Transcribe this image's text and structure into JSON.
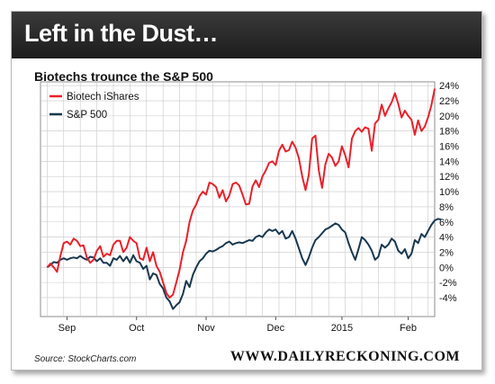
{
  "header": {
    "title": "Left in the Dust…",
    "subtitle": "Biotechs trounce the S&P 500"
  },
  "footer": {
    "source": "Source: StockCharts.com",
    "brand": "WWW.DAILYRECKONING.COM"
  },
  "colors": {
    "biotech": "#e8212b",
    "sp500": "#18384f",
    "grid": "#c8c8c8",
    "banner": "#262626"
  },
  "chart_data": {
    "type": "line",
    "title": "Biotechs trounce the S&P 500",
    "xlabel": "",
    "ylabel": "",
    "x_ticks": [
      "Sep",
      "Oct",
      "Nov",
      "Dec",
      "2015",
      "Feb"
    ],
    "x_tick_positions": [
      6,
      27,
      48,
      69,
      89,
      109
    ],
    "xlim": [
      -2,
      117
    ],
    "y_ticks": [
      "-4%",
      "-2%",
      "0%",
      "2%",
      "4%",
      "6%",
      "8%",
      "10%",
      "12%",
      "14%",
      "16%",
      "18%",
      "20%",
      "22%",
      "24%"
    ],
    "ylim": [
      -6.5,
      24.5
    ],
    "grid": true,
    "legend_position": "top-left",
    "series": [
      {
        "name": "Biotech iShares",
        "color": "#e8212b",
        "points": [
          [
            0,
            0
          ],
          [
            1,
            0.5
          ],
          [
            2,
            0
          ],
          [
            3,
            -0.6
          ],
          [
            4,
            1.5
          ],
          [
            5,
            3.2
          ],
          [
            6,
            3.4
          ],
          [
            7,
            3.0
          ],
          [
            8,
            3.8
          ],
          [
            9,
            3.5
          ],
          [
            10,
            2.8
          ],
          [
            11,
            2.9
          ],
          [
            12,
            1.3
          ],
          [
            13,
            0.6
          ],
          [
            14,
            1.0
          ],
          [
            15,
            2.2
          ],
          [
            16,
            2.8
          ],
          [
            17,
            1.4
          ],
          [
            18,
            1.8
          ],
          [
            19,
            1.6
          ],
          [
            20,
            3.0
          ],
          [
            21,
            3.5
          ],
          [
            22,
            3.5
          ],
          [
            23,
            2.0
          ],
          [
            24,
            2.6
          ],
          [
            25,
            4.0
          ],
          [
            26,
            3.5
          ],
          [
            27,
            3.2
          ],
          [
            28,
            1.2
          ],
          [
            29,
            1.0
          ],
          [
            30,
            2.6
          ],
          [
            31,
            0.8
          ],
          [
            32,
            2.0
          ],
          [
            33,
            0.2
          ],
          [
            34,
            -0.6
          ],
          [
            35,
            -2.0
          ],
          [
            36,
            -3.4
          ],
          [
            37,
            -4.0
          ],
          [
            38,
            -3.6
          ],
          [
            39,
            -2.0
          ],
          [
            40,
            -0.3
          ],
          [
            41,
            2.0
          ],
          [
            42,
            3.5
          ],
          [
            43,
            6.0
          ],
          [
            44,
            7.5
          ],
          [
            45,
            8.3
          ],
          [
            46,
            9.4
          ],
          [
            47,
            10.0
          ],
          [
            48,
            9.6
          ],
          [
            49,
            11.2
          ],
          [
            50,
            11.0
          ],
          [
            51,
            10.6
          ],
          [
            52,
            9.2
          ],
          [
            53,
            10.2
          ],
          [
            54,
            8.7
          ],
          [
            55,
            9.5
          ],
          [
            56,
            11.0
          ],
          [
            57,
            11.2
          ],
          [
            58,
            10.8
          ],
          [
            59,
            9.6
          ],
          [
            60,
            8.3
          ],
          [
            61,
            8.4
          ],
          [
            62,
            10.7
          ],
          [
            63,
            11.5
          ],
          [
            64,
            10.6
          ],
          [
            65,
            12.0
          ],
          [
            66,
            12.8
          ],
          [
            67,
            13.8
          ],
          [
            68,
            14.0
          ],
          [
            69,
            13.5
          ],
          [
            70,
            15.4
          ],
          [
            71,
            16.2
          ],
          [
            72,
            15.3
          ],
          [
            73,
            15.5
          ],
          [
            74,
            16.6
          ],
          [
            75,
            15.8
          ],
          [
            76,
            14.4
          ],
          [
            77,
            12.0
          ],
          [
            78,
            10.2
          ],
          [
            79,
            12.2
          ],
          [
            80,
            17.0
          ],
          [
            81,
            17.4
          ],
          [
            82,
            12.8
          ],
          [
            83,
            10.5
          ],
          [
            84,
            13.6
          ],
          [
            85,
            15.0
          ],
          [
            86,
            14.5
          ],
          [
            87,
            13.4
          ],
          [
            88,
            14.0
          ],
          [
            89,
            16.0
          ],
          [
            90,
            14.8
          ],
          [
            91,
            13.2
          ],
          [
            92,
            17.0
          ],
          [
            93,
            18.0
          ],
          [
            94,
            18.4
          ],
          [
            95,
            17.9
          ],
          [
            96,
            18.5
          ],
          [
            97,
            18.3
          ],
          [
            98,
            15.4
          ],
          [
            99,
            19.0
          ],
          [
            100,
            19.5
          ],
          [
            101,
            21.5
          ],
          [
            102,
            20.0
          ],
          [
            103,
            21.0
          ],
          [
            104,
            21.8
          ],
          [
            105,
            23.0
          ],
          [
            106,
            21.6
          ],
          [
            107,
            19.8
          ],
          [
            108,
            20.7
          ],
          [
            109,
            20.0
          ],
          [
            110,
            19.5
          ],
          [
            111,
            17.5
          ],
          [
            112,
            19.4
          ],
          [
            113,
            18.0
          ],
          [
            114,
            18.6
          ],
          [
            115,
            19.8
          ],
          [
            116,
            21.4
          ],
          [
            117,
            23.6
          ]
        ]
      },
      {
        "name": "S&P 500",
        "color": "#18384f",
        "points": [
          [
            0,
            0
          ],
          [
            1,
            0.3
          ],
          [
            2,
            0.7
          ],
          [
            3,
            0.6
          ],
          [
            4,
            1.0
          ],
          [
            5,
            1.2
          ],
          [
            6,
            1.0
          ],
          [
            7,
            1.2
          ],
          [
            8,
            1.3
          ],
          [
            9,
            1.2
          ],
          [
            10,
            1.5
          ],
          [
            11,
            1.2
          ],
          [
            12,
            1.0
          ],
          [
            13,
            1.4
          ],
          [
            14,
            1.3
          ],
          [
            15,
            0.8
          ],
          [
            16,
            1.2
          ],
          [
            17,
            0.6
          ],
          [
            18,
            0.6
          ],
          [
            19,
            0.2
          ],
          [
            20,
            1.2
          ],
          [
            21,
            1.0
          ],
          [
            22,
            1.5
          ],
          [
            23,
            0.8
          ],
          [
            24,
            1.4
          ],
          [
            25,
            0.6
          ],
          [
            26,
            1.6
          ],
          [
            27,
            0.8
          ],
          [
            28,
            0.6
          ],
          [
            29,
            -0.2
          ],
          [
            30,
            0.2
          ],
          [
            31,
            -1.6
          ],
          [
            32,
            -0.8
          ],
          [
            33,
            -1.0
          ],
          [
            34,
            -2.2
          ],
          [
            35,
            -2.8
          ],
          [
            36,
            -4.0
          ],
          [
            37,
            -4.5
          ],
          [
            38,
            -5.5
          ],
          [
            39,
            -5.0
          ],
          [
            40,
            -4.6
          ],
          [
            41,
            -3.5
          ],
          [
            42,
            -1.8
          ],
          [
            43,
            -2.6
          ],
          [
            44,
            -1.0
          ],
          [
            45,
            0.0
          ],
          [
            46,
            0.8
          ],
          [
            47,
            1.2
          ],
          [
            48,
            1.8
          ],
          [
            49,
            2.2
          ],
          [
            50,
            2.1
          ],
          [
            51,
            2.3
          ],
          [
            52,
            2.6
          ],
          [
            53,
            2.8
          ],
          [
            54,
            3.2
          ],
          [
            55,
            3.4
          ],
          [
            56,
            3.0
          ],
          [
            57,
            3.2
          ],
          [
            58,
            3.3
          ],
          [
            59,
            3.2
          ],
          [
            60,
            3.4
          ],
          [
            61,
            3.6
          ],
          [
            62,
            3.5
          ],
          [
            63,
            4.0
          ],
          [
            64,
            4.2
          ],
          [
            65,
            4.0
          ],
          [
            66,
            4.6
          ],
          [
            67,
            5.0
          ],
          [
            68,
            4.8
          ],
          [
            69,
            5.0
          ],
          [
            70,
            4.4
          ],
          [
            71,
            4.8
          ],
          [
            72,
            3.8
          ],
          [
            73,
            4.0
          ],
          [
            74,
            4.8
          ],
          [
            75,
            3.8
          ],
          [
            76,
            2.5
          ],
          [
            77,
            1.2
          ],
          [
            78,
            0.3
          ],
          [
            79,
            1.3
          ],
          [
            80,
            2.6
          ],
          [
            81,
            3.6
          ],
          [
            82,
            4.0
          ],
          [
            83,
            4.5
          ],
          [
            84,
            5.0
          ],
          [
            85,
            5.2
          ],
          [
            86,
            5.5
          ],
          [
            87,
            5.8
          ],
          [
            88,
            5.6
          ],
          [
            89,
            5.0
          ],
          [
            90,
            4.6
          ],
          [
            91,
            3.2
          ],
          [
            92,
            2.0
          ],
          [
            93,
            1.0
          ],
          [
            94,
            2.4
          ],
          [
            95,
            4.0
          ],
          [
            96,
            3.6
          ],
          [
            97,
            3.0
          ],
          [
            98,
            2.2
          ],
          [
            99,
            1.0
          ],
          [
            100,
            1.4
          ],
          [
            101,
            3.0
          ],
          [
            102,
            2.6
          ],
          [
            103,
            3.0
          ],
          [
            104,
            3.8
          ],
          [
            105,
            3.4
          ],
          [
            106,
            2.2
          ],
          [
            107,
            1.8
          ],
          [
            108,
            2.4
          ],
          [
            109,
            1.2
          ],
          [
            110,
            1.8
          ],
          [
            111,
            3.6
          ],
          [
            112,
            3.2
          ],
          [
            113,
            4.4
          ],
          [
            114,
            4.0
          ],
          [
            115,
            4.8
          ],
          [
            116,
            5.6
          ],
          [
            117,
            6.2
          ],
          [
            118,
            6.4
          ],
          [
            119,
            6.3
          ]
        ]
      }
    ]
  }
}
